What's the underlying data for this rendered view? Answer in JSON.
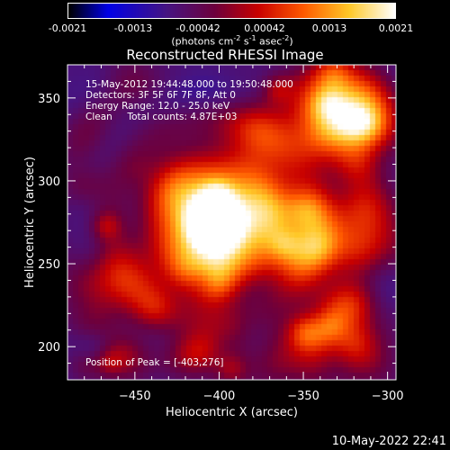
{
  "colorbar": {
    "ticks": [
      "-0.0021",
      "-0.0013",
      "-0.00042",
      "0.00042",
      "0.0013",
      "0.0021"
    ],
    "unit_html": "(photons cm<sup style='font-size:8px'>-2</sup> s<sup style='font-size:8px'>-1</sup> asec<sup style='font-size:8px'>-2</sup>)"
  },
  "title": "Reconstructed RHESSI Image",
  "annotations": {
    "time_range": "15-May-2012 19:44:48.000 to 19:50:48.000",
    "detectors": "Detectors: 3F 5F 6F 7F 8F, Att 0",
    "energy": "Energy Range: 12.0 - 25.0 keV",
    "method": "Clean     Total counts: 4.87E+03",
    "peak": "Position of Peak = [-403,276]"
  },
  "footer": {
    "date": "10-May-2022 22:41"
  },
  "chart_data": {
    "type": "heatmap",
    "title": "Reconstructed RHESSI Image",
    "xlabel": "Heliocentric X (arcsec)",
    "ylabel": "Heliocentric Y (arcsec)",
    "xlim": [
      -490,
      -295
    ],
    "ylim": [
      180,
      370
    ],
    "x_ticks": [
      -450,
      -400,
      -350,
      -300
    ],
    "y_ticks": [
      200,
      250,
      300,
      350
    ],
    "colorbar_range": [
      -0.0021,
      0.0021
    ],
    "peak": {
      "x": -403,
      "y": 276
    },
    "colormap": "black-blue-purple-red-orange-yellow-white"
  }
}
